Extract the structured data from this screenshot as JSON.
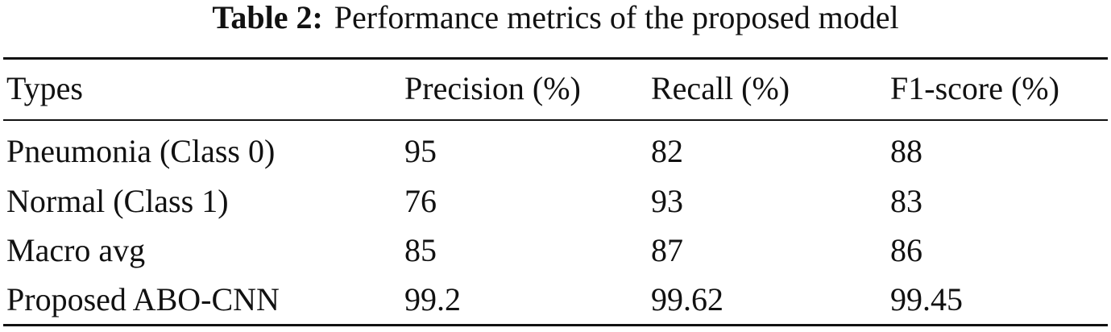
{
  "table": {
    "caption": {
      "label": "Table 2:",
      "text": "Performance metrics of the proposed model"
    },
    "header": [
      "Types",
      "Precision (%)",
      "Recall (%)",
      "F1-score (%)"
    ],
    "rows": [
      [
        "Pneumonia (Class 0)",
        "95",
        "82",
        "88"
      ],
      [
        "Normal (Class 1)",
        "76",
        "93",
        "83"
      ],
      [
        "Macro avg",
        "85",
        "87",
        "86"
      ],
      [
        "Proposed ABO-CNN",
        "99.2",
        "99.62",
        "99.45"
      ]
    ]
  }
}
